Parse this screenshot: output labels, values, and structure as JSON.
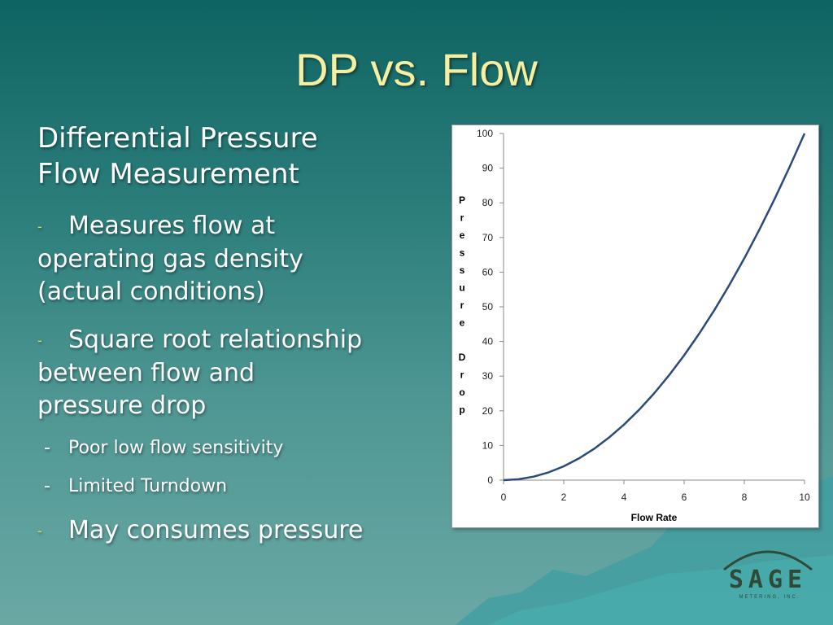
{
  "slide": {
    "title": "DP vs. Flow",
    "heading_line1": "Differential Pressure",
    "heading_line2": "Flow Measurement",
    "bullet_marker": "-",
    "bullets": [
      {
        "lines": [
          "Measures flow at",
          "operating  gas density",
          "(actual conditions)"
        ]
      },
      {
        "lines": [
          "Square root relationship",
          "between flow and",
          "pressure drop"
        ]
      }
    ],
    "sub_bullets": [
      "Poor low flow sensitivity",
      "Limited Turndown"
    ],
    "last_bullet": "May consumes pressure"
  },
  "logo": {
    "name": "SAGE",
    "tagline": "METERING, INC."
  },
  "colors": {
    "title": "#f6eea0",
    "dash": "#f3d34a",
    "curve": "#2a4a7a",
    "logo": "#2e4a38"
  },
  "chart_data": {
    "type": "line",
    "x": [
      0,
      0.5,
      1,
      1.5,
      2,
      2.5,
      3,
      3.5,
      4,
      4.5,
      5,
      5.5,
      6,
      6.5,
      7,
      7.5,
      8,
      8.5,
      9,
      9.5,
      10
    ],
    "series": [
      {
        "values": [
          0,
          0.25,
          1,
          2.25,
          4,
          6.25,
          9,
          12.25,
          16,
          20.25,
          25,
          30.25,
          36,
          42.25,
          49,
          56.25,
          64,
          72.25,
          81,
          90.25,
          100
        ]
      }
    ],
    "xlabel": "Flow Rate",
    "ylabel": "Pressure Drop",
    "xlim": [
      0,
      10
    ],
    "ylim": [
      0,
      100
    ],
    "x_ticks": [
      "0",
      "2",
      "4",
      "6",
      "8",
      "10"
    ],
    "y_ticks": [
      "0",
      "10",
      "20",
      "30",
      "40",
      "50",
      "60",
      "70",
      "80",
      "90",
      "100"
    ],
    "grid": false,
    "legend": "none"
  }
}
